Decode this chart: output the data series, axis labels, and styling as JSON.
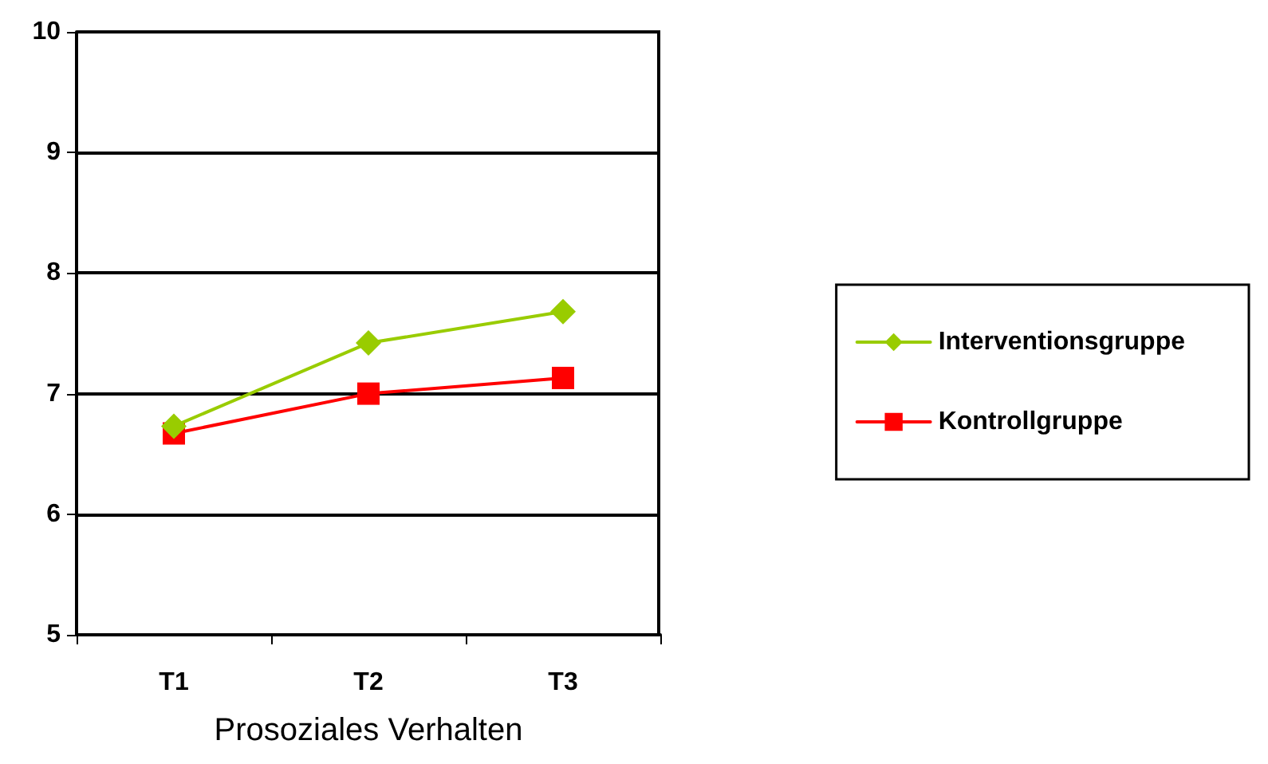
{
  "chart_data": {
    "type": "line",
    "xlabel": "Prosoziales Verhalten",
    "categories": [
      "T1",
      "T2",
      "T3"
    ],
    "series": [
      {
        "name": "Interventionsgruppe",
        "color": "#99cc00",
        "marker": "diamond",
        "values": [
          6.73,
          7.42,
          7.68
        ]
      },
      {
        "name": "Kontrollgruppe",
        "color": "#ff0000",
        "marker": "square",
        "values": [
          6.67,
          7.0,
          7.13
        ]
      }
    ],
    "ylim": [
      5,
      10
    ],
    "yticks": [
      5,
      6,
      7,
      8,
      9,
      10
    ],
    "grid": "y",
    "legend": "right",
    "line_style": "solid"
  }
}
